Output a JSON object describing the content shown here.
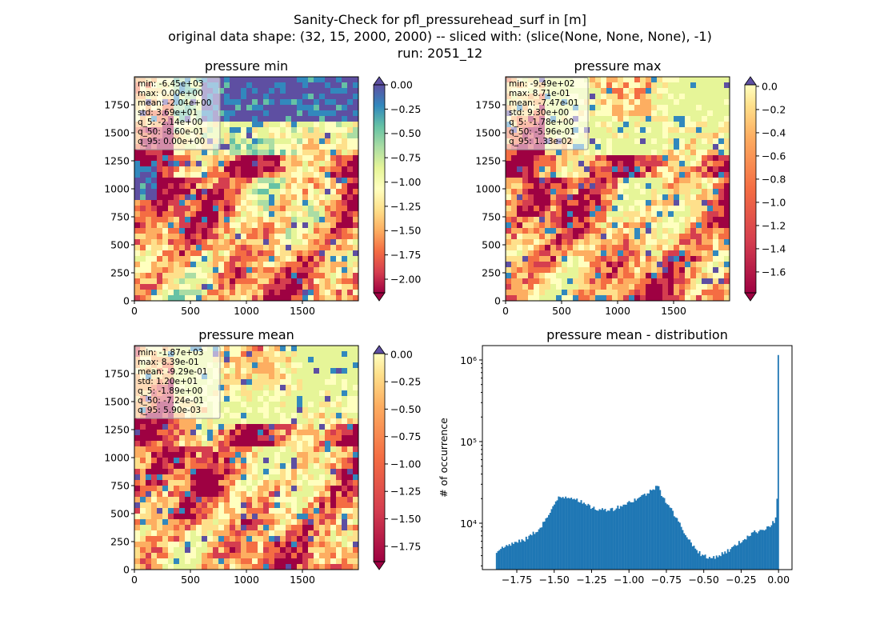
{
  "suptitle": {
    "line1": "Sanity-Check for pfl_pressurehead_surf in [m]",
    "line2": "original data shape: (32, 15, 2000, 2000) -- sliced with: (slice(None, None, None), -1)",
    "line3": "run: 2051_12"
  },
  "colors": {
    "spectral": [
      "#9e0142",
      "#d53e4f",
      "#f46d43",
      "#fdae61",
      "#fee08b",
      "#ffffbf",
      "#e6f598",
      "#abdda4",
      "#66c2a5",
      "#3288bd",
      "#5e4fa2"
    ],
    "hist_bar": "#1f77b4"
  },
  "chart_data": [
    {
      "type": "heatmap",
      "title": "pressure min",
      "x_ticks": [
        "0",
        "500",
        "1000",
        "1500"
      ],
      "y_ticks": [
        "0",
        "250",
        "500",
        "750",
        "1000",
        "1250",
        "1500",
        "1750"
      ],
      "xlim": [
        0,
        2000
      ],
      "ylim": [
        0,
        2000
      ],
      "colorbar": {
        "ticks": [
          "0.00",
          "-0.25",
          "-0.50",
          "-0.75",
          "-1.00",
          "-1.25",
          "-1.50",
          "-1.75",
          "-2.00"
        ],
        "range": [
          -2.14,
          0.0
        ],
        "extend": "both",
        "cmap": "Spectral"
      },
      "stats": [
        "min: -6.45e+03",
        "max: 0.00e+00",
        "mean: -2.04e+00",
        "std: 3.69e+01",
        "q_5: -2.14e+00",
        "q_50: -8.60e-01",
        "q_95: 0.00e+00"
      ]
    },
    {
      "type": "heatmap",
      "title": "pressure max",
      "x_ticks": [
        "0",
        "500",
        "1000",
        "1500"
      ],
      "y_ticks": [
        "0",
        "250",
        "500",
        "750",
        "1000",
        "1250",
        "1500",
        "1750"
      ],
      "xlim": [
        0,
        2000
      ],
      "ylim": [
        0,
        2000
      ],
      "colorbar": {
        "ticks": [
          "0.0",
          "-0.2",
          "-0.4",
          "-0.6",
          "-0.8",
          "-1.0",
          "-1.2",
          "-1.4",
          "-1.6"
        ],
        "range": [
          -1.78,
          0.0133
        ],
        "extend": "both",
        "cmap": "Spectral"
      },
      "stats": [
        "min: -9.49e+02",
        "max: 8.71e-01",
        "mean: -7.47e-01",
        "std: 9.30e+00",
        "q_5: -1.78e+00",
        "q_50: -5.96e-01",
        "q_95: 1.33e-02"
      ]
    },
    {
      "type": "heatmap",
      "title": "pressure mean",
      "x_ticks": [
        "0",
        "500",
        "1000",
        "1500"
      ],
      "y_ticks": [
        "0",
        "250",
        "500",
        "750",
        "1000",
        "1250",
        "1500",
        "1750"
      ],
      "xlim": [
        0,
        2000
      ],
      "ylim": [
        0,
        2000
      ],
      "colorbar": {
        "ticks": [
          "0.00",
          "-0.25",
          "-0.50",
          "-0.75",
          "-1.00",
          "-1.25",
          "-1.50",
          "-1.75"
        ],
        "range": [
          -1.89,
          0.0059
        ],
        "extend": "both",
        "cmap": "Spectral"
      },
      "stats": [
        "min: -1.87e+03",
        "max: 8.39e-01",
        "mean: -9.29e-01",
        "std: 1.20e+01",
        "q_5: -1.89e+00",
        "q_50: -7.24e-01",
        "q_95: 5.90e-03"
      ]
    },
    {
      "type": "bar",
      "title": "pressure mean - distribution",
      "ylabel": "# of occurrence",
      "yscale": "log",
      "x_ticks": [
        "−1.75",
        "−1.50",
        "−1.25",
        "−1.00",
        "−0.75",
        "−0.50",
        "−0.25",
        "0.00"
      ],
      "y_ticks": [
        "10⁴",
        "10⁵",
        "10⁶"
      ],
      "xlim": [
        -1.98,
        0.09
      ],
      "ylim": [
        2700,
        1500000
      ],
      "profile": [
        [
          -1.89,
          4500
        ],
        [
          -1.8,
          5500
        ],
        [
          -1.7,
          6200
        ],
        [
          -1.6,
          8500
        ],
        [
          -1.52,
          14000
        ],
        [
          -1.47,
          21000
        ],
        [
          -1.4,
          21000
        ],
        [
          -1.35,
          20000
        ],
        [
          -1.3,
          17000
        ],
        [
          -1.2,
          14500
        ],
        [
          -1.1,
          15000
        ],
        [
          -1.0,
          18000
        ],
        [
          -0.9,
          22000
        ],
        [
          -0.85,
          25000
        ],
        [
          -0.8,
          30000
        ],
        [
          -0.78,
          22000
        ],
        [
          -0.72,
          15000
        ],
        [
          -0.65,
          9000
        ],
        [
          -0.58,
          5500
        ],
        [
          -0.52,
          4200
        ],
        [
          -0.47,
          3700
        ],
        [
          -0.4,
          4000
        ],
        [
          -0.32,
          4800
        ],
        [
          -0.25,
          6000
        ],
        [
          -0.18,
          7500
        ],
        [
          -0.1,
          8500
        ],
        [
          -0.05,
          9500
        ],
        [
          -0.02,
          11000
        ],
        [
          -0.005,
          25000
        ]
      ],
      "spike": {
        "x": 0.0,
        "value": 1150000
      }
    }
  ]
}
